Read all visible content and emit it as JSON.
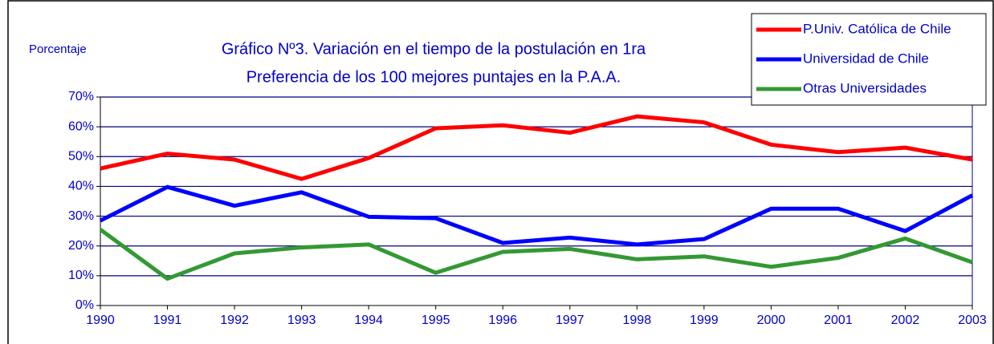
{
  "chart_data": {
    "type": "line",
    "title": [
      "Gráfico Nº3. Variación en el tiempo de la postulación en 1ra",
      "Preferencia de los 100 mejores puntajes en la P.A.A."
    ],
    "y_label": "Porcentaje",
    "categories": [
      "1990",
      "1991",
      "1992",
      "1993",
      "1994",
      "1995",
      "1996",
      "1997",
      "1998",
      "1999",
      "2000",
      "2001",
      "2002",
      "2003"
    ],
    "series": [
      {
        "name": "P.Univ. Católica de Chile",
        "color": "#ff0000",
        "values": [
          46,
          51,
          49,
          42.5,
          49.5,
          59.5,
          60.5,
          58,
          63.5,
          61.5,
          54,
          51.5,
          53,
          49
        ]
      },
      {
        "name": "Universidad de Chile",
        "color": "#0000ff",
        "values": [
          28.5,
          39.8,
          33.5,
          38,
          29.8,
          29.3,
          21,
          22.8,
          20.5,
          22.3,
          32.5,
          32.5,
          25,
          37
        ]
      },
      {
        "name": "Otras Universidades",
        "color": "#339933",
        "values": [
          25.5,
          9,
          17.5,
          19.5,
          20.5,
          11,
          18,
          19,
          15.5,
          16.5,
          13,
          16,
          22.5,
          14.5
        ]
      }
    ],
    "ylim": [
      0,
      70
    ],
    "yticks": [
      {
        "value": 0,
        "label": "0%"
      },
      {
        "value": 10,
        "label": "10%"
      },
      {
        "value": 20,
        "label": "20%"
      },
      {
        "value": 30,
        "label": "30%"
      },
      {
        "value": 40,
        "label": "40%"
      },
      {
        "value": 50,
        "label": "50%"
      },
      {
        "value": 60,
        "label": "60%"
      },
      {
        "value": 70,
        "label": "70%"
      }
    ],
    "grid": true,
    "legend": "top-right"
  }
}
